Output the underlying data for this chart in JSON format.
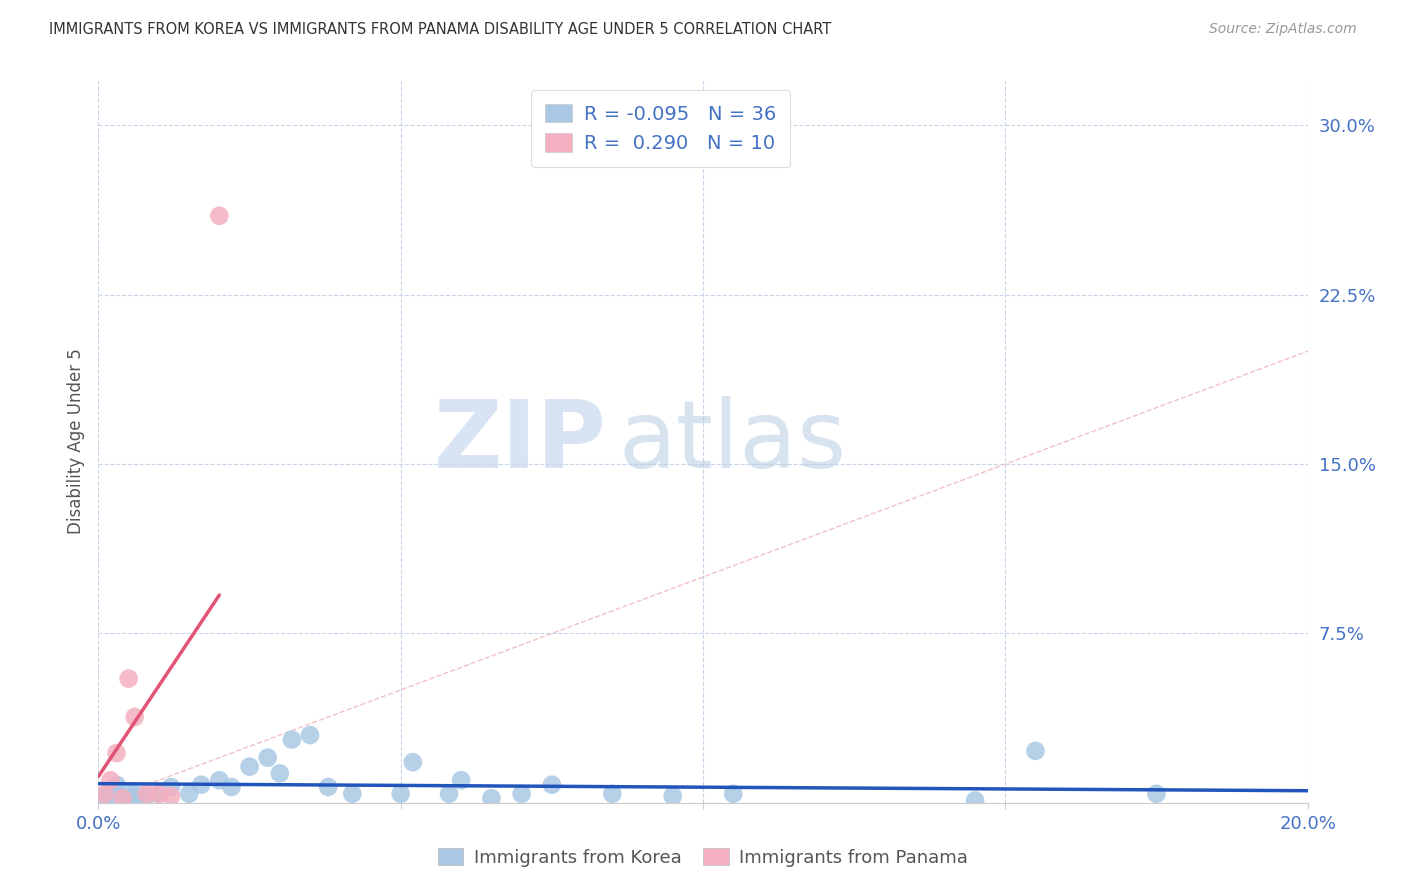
{
  "title": "IMMIGRANTS FROM KOREA VS IMMIGRANTS FROM PANAMA DISABILITY AGE UNDER 5 CORRELATION CHART",
  "source": "Source: ZipAtlas.com",
  "ylabel": "Disability Age Under 5",
  "xlabel": "",
  "xlim": [
    0.0,
    0.2
  ],
  "ylim": [
    0.0,
    0.32
  ],
  "yticks": [
    0.0,
    0.075,
    0.15,
    0.225,
    0.3
  ],
  "ytick_labels": [
    "",
    "7.5%",
    "15.0%",
    "22.5%",
    "30.0%"
  ],
  "xticks": [
    0.0,
    0.05,
    0.1,
    0.15,
    0.2
  ],
  "xtick_labels": [
    "0.0%",
    "",
    "",
    "",
    "20.0%"
  ],
  "korea_R": -0.095,
  "korea_N": 36,
  "panama_R": 0.29,
  "panama_N": 10,
  "korea_color": "#aac8e4",
  "panama_color": "#f4afc0",
  "korea_line_color": "#2255bb",
  "panama_line_color": "#e05575",
  "ref_line_color": "#f0b8c8",
  "watermark_zip": "ZIP",
  "watermark_atlas": "atlas",
  "background_color": "#ffffff",
  "korea_x": [
    0.001,
    0.002,
    0.003,
    0.003,
    0.004,
    0.005,
    0.005,
    0.006,
    0.007,
    0.008,
    0.01,
    0.012,
    0.015,
    0.017,
    0.02,
    0.022,
    0.025,
    0.028,
    0.03,
    0.032,
    0.035,
    0.038,
    0.042,
    0.05,
    0.052,
    0.058,
    0.06,
    0.065,
    0.07,
    0.075,
    0.085,
    0.095,
    0.105,
    0.145,
    0.155,
    0.175
  ],
  "korea_y": [
    0.003,
    0.003,
    0.005,
    0.008,
    0.002,
    0.0,
    0.004,
    0.004,
    0.002,
    0.003,
    0.004,
    0.007,
    0.004,
    0.008,
    0.01,
    0.007,
    0.016,
    0.02,
    0.013,
    0.028,
    0.03,
    0.007,
    0.004,
    0.004,
    0.018,
    0.004,
    0.01,
    0.002,
    0.004,
    0.008,
    0.004,
    0.003,
    0.004,
    0.001,
    0.023,
    0.004
  ],
  "panama_x": [
    0.001,
    0.002,
    0.003,
    0.004,
    0.005,
    0.006,
    0.008,
    0.01,
    0.012,
    0.02
  ],
  "panama_y": [
    0.004,
    0.01,
    0.022,
    0.002,
    0.055,
    0.038,
    0.004,
    0.004,
    0.003,
    0.26
  ]
}
